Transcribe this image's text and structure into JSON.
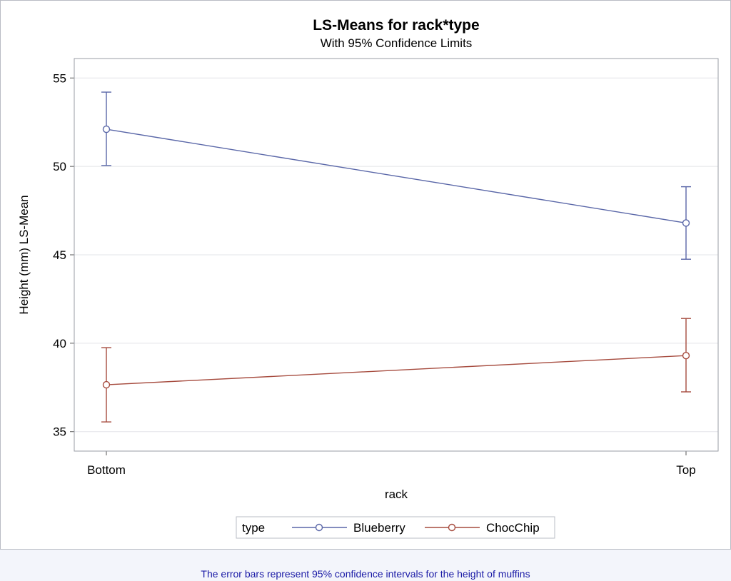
{
  "chart_data": {
    "type": "line",
    "title": "LS-Means for rack*type",
    "subtitle": "With 95% Confidence Limits",
    "xlabel": "rack",
    "ylabel": "Height (mm) LS-Mean",
    "categories": [
      "Bottom",
      "Top"
    ],
    "ylim": [
      33.9,
      56.1
    ],
    "yticks": [
      35,
      40,
      45,
      50,
      55
    ],
    "grid": true,
    "legend": {
      "title": "type",
      "placement": "bottom-center"
    },
    "series": [
      {
        "name": "Blueberry",
        "color": "#5a67a8",
        "values": [
          52.1,
          46.8
        ],
        "lower": [
          50.05,
          44.75
        ],
        "upper": [
          54.2,
          48.85
        ]
      },
      {
        "name": "ChocChip",
        "color": "#a64b3e",
        "values": [
          37.65,
          39.3
        ],
        "lower": [
          35.55,
          37.25
        ],
        "upper": [
          39.75,
          41.4
        ]
      }
    ]
  },
  "caption": "The error bars represent 95% confidence intervals for the height of muffins"
}
